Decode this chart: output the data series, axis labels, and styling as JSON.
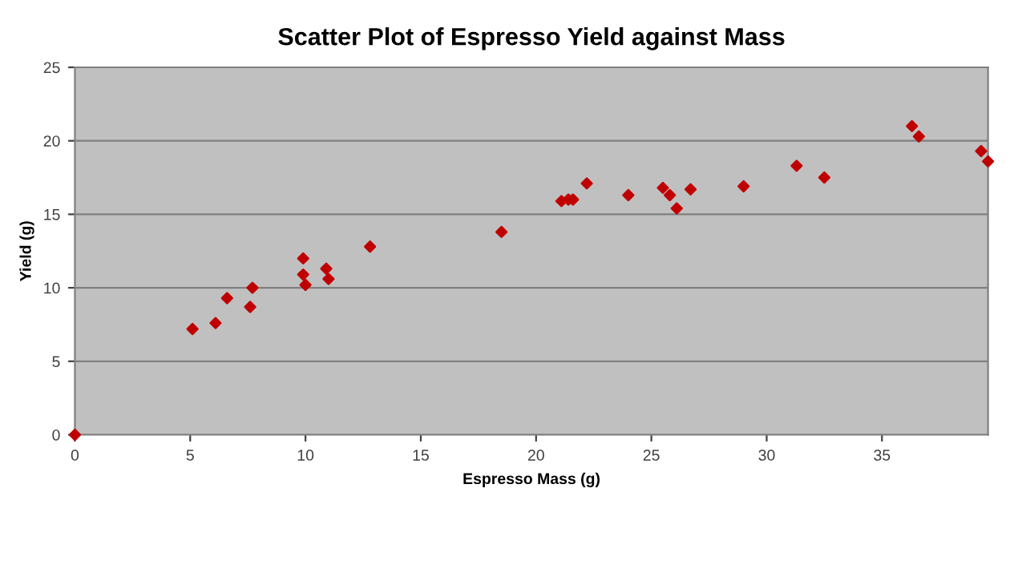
{
  "chart_data": {
    "type": "scatter",
    "title": "Scatter Plot of Espresso Yield against Mass",
    "xlabel": "Espresso Mass (g)",
    "ylabel": "Yield (g)",
    "x": [
      0,
      5.1,
      6.1,
      6.6,
      7.7,
      7.6,
      9.9,
      9.9,
      10.0,
      10.9,
      11.0,
      12.8,
      18.5,
      21.1,
      21.4,
      21.6,
      22.2,
      24.0,
      25.5,
      25.8,
      26.1,
      26.7,
      29.0,
      31.3,
      32.5,
      36.3,
      36.6,
      39.3,
      39.6
    ],
    "values": [
      0,
      7.2,
      7.6,
      9.3,
      10.0,
      8.7,
      12.0,
      10.9,
      10.2,
      11.3,
      10.6,
      12.8,
      13.8,
      15.9,
      16.0,
      16.0,
      17.1,
      16.3,
      16.8,
      16.3,
      15.4,
      16.7,
      16.9,
      18.3,
      17.5,
      21.0,
      20.3,
      19.3,
      18.6
    ],
    "color": "#c00000",
    "marker": "diamond",
    "grid": "y",
    "xlim": [
      0,
      39.6
    ],
    "xticks": [
      0,
      5,
      10,
      15,
      20,
      25,
      30,
      35
    ],
    "ylim": [
      0,
      25
    ],
    "yticks": [
      0,
      5,
      10,
      15,
      20,
      25
    ]
  }
}
